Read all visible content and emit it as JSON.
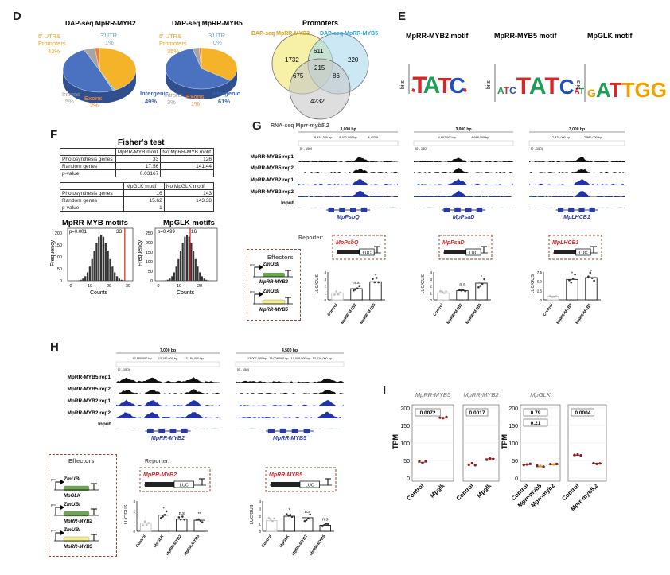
{
  "panels": {
    "D": "D",
    "E": "E",
    "F": "F",
    "G": "G",
    "H": "H",
    "I": "I"
  },
  "D": {
    "pie1": {
      "title": "DAP-seq MpRR-MYB2",
      "utr_label": "5' UTR&\nPromoters",
      "utr_pct": "43%",
      "utr3_label": "3'UTR",
      "utr3_pct": "1%",
      "intergenic_label": "Intergenic",
      "intergenic_pct": "49%",
      "introns_label": "Introns",
      "introns_pct": "5%",
      "exons_label": "Exons",
      "exons_pct": "2%",
      "values": [
        {
          "name": "5' UTR&Promoters",
          "value": 43,
          "color": "#f5b32a"
        },
        {
          "name": "3'UTR",
          "value": 1,
          "color": "#7fb3d5"
        },
        {
          "name": "Intergenic",
          "value": 49,
          "color": "#4a72c0"
        },
        {
          "name": "Introns",
          "value": 5,
          "color": "#a5a5a5"
        },
        {
          "name": "Exons",
          "value": 2,
          "color": "#ed7d31"
        }
      ]
    },
    "pie2": {
      "title": "DAP-seq MpRR-MYB5",
      "utr_label": "5' UTR&\nPromoters",
      "utr_pct": "35%",
      "utr3_label": "3'UTR",
      "utr3_pct": "0%",
      "intergenic_label": "Intergenic",
      "intergenic_pct": "61%",
      "introns_label": "Introns",
      "introns_pct": "3%",
      "exons_label": "Exons",
      "exons_pct": "1%",
      "values": [
        {
          "name": "5' UTR&Promoters",
          "value": 35,
          "color": "#f5b32a"
        },
        {
          "name": "3'UTR",
          "value": 0,
          "color": "#7fb3d5"
        },
        {
          "name": "Intergenic",
          "value": 61,
          "color": "#4a72c0"
        },
        {
          "name": "Introns",
          "value": 3,
          "color": "#a5a5a5"
        },
        {
          "name": "Exons",
          "value": 1,
          "color": "#ed7d31"
        }
      ]
    },
    "venn": {
      "title": "Promoters",
      "set_a": "DAP-seq MpRR-MYB2",
      "set_b": "DAP-seq MpRR-MYB5",
      "set_c_prefix": "RNA-seq Mp",
      "set_c_italic": "rr-myb5,2",
      "a_only": "1732",
      "ab": "611",
      "b_only": "220",
      "abc": "215",
      "ac": "675",
      "bc": "86",
      "c_only": "4232"
    }
  },
  "E": {
    "m1": "MpRR-MYB2 motif",
    "m2": "MpRR-MYB5 motif",
    "m3": "MpGLK motif",
    "ylabel": "bits"
  },
  "F": {
    "title": "Fisher's test",
    "t1": {
      "h1": "MpRR-MYB motif",
      "h2": "No MpRR-MYB motif",
      "rows": [
        [
          "Photosynthesis genes",
          "33",
          "126"
        ],
        [
          "Random genes",
          "17.56",
          "141.44"
        ],
        [
          "p-value",
          "0.03167",
          ""
        ]
      ]
    },
    "t2": {
      "h1": "MpGLK motif",
      "h2": "No MpGLK motif",
      "rows": [
        [
          "Photosynthesis genes",
          "16",
          "143"
        ],
        [
          "Random genes",
          "15.62",
          "143.38"
        ],
        [
          "p-value",
          "1",
          ""
        ]
      ]
    },
    "h1": {
      "title": "MpRR-MYB motifs",
      "p": "p=0.001",
      "obs": "33",
      "xlabel": "Counts",
      "ylabel": "Frequency",
      "yticks": [
        "0",
        "50",
        "100",
        "150",
        "200"
      ],
      "xticks": [
        "0",
        "10",
        "20",
        "30"
      ]
    },
    "h2": {
      "title": "MpGLK motifs",
      "p": "p=0.499",
      "obs": "16",
      "xlabel": "Counts",
      "ylabel": "Frequency",
      "yticks": [
        "0",
        "50",
        "100",
        "150",
        "200",
        "250"
      ],
      "xticks": [
        "0",
        "10",
        "20"
      ]
    }
  },
  "G": {
    "scale": "3,000 bp",
    "range": "[0 - 150]",
    "tracks": [
      "MpRR-MYB5 rep1",
      "MpRR-MYB5 rep2",
      "MpRR-MYB2 rep1",
      "MpRR-MYB2 rep2",
      "Input"
    ],
    "genes": [
      "MpPsbQ",
      "MpPsaD",
      "MpLHCB1"
    ],
    "coords": [
      [
        "8,431,000 bp",
        "8,432,000 bp",
        "8,433,0"
      ],
      [
        "4,687,000 bp",
        "4,688,000 bp"
      ],
      [
        "7,879,000 bp",
        "7,880,000 bp"
      ]
    ],
    "effectors_title": "Effectors",
    "zm": "ZmUBI",
    "pro": "pro",
    "eff1": "MpRR-MYB2",
    "eff2": "MpRR-MYB5",
    "reporter": "Reporter:",
    "luc": "LUC",
    "ylabel": "LUC/GUS",
    "reporters": [
      "MpPsbQ",
      "MpPsaD",
      "MpLHCB1"
    ],
    "xcats": [
      "Control",
      "MpRR-MYB2",
      "MpRR-MYB5"
    ],
    "sig": [
      [
        "",
        "n.s",
        "*"
      ],
      [
        "",
        "n.s",
        "*"
      ],
      [
        "",
        "*",
        "*"
      ]
    ],
    "bars": [
      [
        1.0,
        1.6,
        2.6
      ],
      [
        1.0,
        1.3,
        2.4
      ],
      [
        1.0,
        5.5,
        6.0
      ]
    ],
    "yticks": [
      [
        "0",
        "1",
        "2",
        "3",
        "4"
      ],
      [
        "0",
        "1",
        "2",
        "3",
        "4"
      ],
      [
        "0",
        "2.5",
        "5.0",
        "7.5"
      ]
    ]
  },
  "H": {
    "scales": [
      "7,000 bp",
      "4,500 bp"
    ],
    "range": "[0 - 150]",
    "coords": [
      [
        "13,180,000 bp",
        "13,182,000 bp",
        "13,184,000 bp"
      ],
      [
        "13,007,000 bp",
        "13,008,000 bp",
        "13,009,000 bp",
        "13,010,000 bp"
      ]
    ],
    "tracks": [
      "MpRR-MYB5 rep1",
      "MpRR-MYB5 rep2",
      "MpRR-MYB2 rep1",
      "MpRR-MYB2 rep2",
      "Input"
    ],
    "genes": [
      "MpRR-MYB2",
      "MpRR-MYB5"
    ],
    "effectors_title": "Effectors",
    "zm": "ZmUBI",
    "pro": "pro",
    "eff": [
      "MpGLK",
      "MpRR-MYB2",
      "MpRR-MYB5"
    ],
    "reporter": "Reporter:",
    "luc": "LUC",
    "ylabel": "LUC/GUS",
    "reporters": [
      "MpRR-MYB2",
      "MpRR-MYB5"
    ],
    "xcats": [
      "Control",
      "MpGLK",
      "MpRR-MYB2",
      "MpRR-MYB5"
    ],
    "sig": [
      [
        "",
        "*",
        "n.s",
        "**"
      ],
      [
        "",
        "*",
        "n.s",
        "n.s"
      ]
    ],
    "bars": [
      [
        0.8,
        1.6,
        1.2,
        1.1
      ],
      [
        1.4,
        2.0,
        1.8,
        0.8
      ]
    ],
    "yticks": [
      [
        "0",
        "1",
        "2",
        "3"
      ],
      [
        "0",
        "1",
        "2",
        "3",
        "4"
      ]
    ]
  },
  "I": {
    "ylabel": "TPM",
    "yticks": [
      "0",
      "50",
      "100",
      "150",
      "200"
    ],
    "plots": [
      {
        "title": "MpRR-MYB5",
        "cats": [
          "Control",
          "Mpglk"
        ],
        "vals": [
          45,
          172
        ],
        "p": [
          "0.0072"
        ]
      },
      {
        "title": "MpRR-MYB2",
        "cats": [
          "Control",
          "Mpglk"
        ],
        "vals": [
          40,
          55
        ],
        "p": [
          "0.0017"
        ]
      },
      {
        "title": "MpGLK",
        "cats": [
          "Control",
          "Mprr-myb5",
          "Mprr-myb2"
        ],
        "vals": [
          38,
          32,
          38
        ],
        "p": [
          "0.79",
          "0.21"
        ]
      },
      {
        "title": "",
        "cats": [
          "Control",
          "Mprr-myb5,2"
        ],
        "vals": [
          65,
          42
        ],
        "p": [
          "0.0004"
        ]
      }
    ]
  }
}
